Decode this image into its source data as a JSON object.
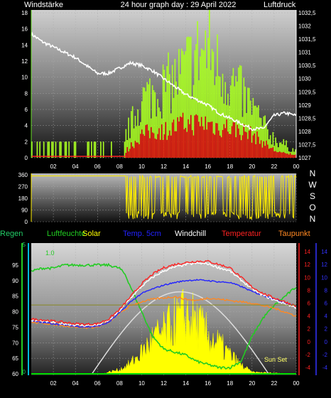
{
  "header": {
    "left_title": "Windstärke",
    "center_title": "24 hour graph day : 29 April 2022",
    "right_title": "Luftdruck"
  },
  "colors": {
    "bg": "#000000",
    "white": "#ffffff",
    "wind_avg": "#66dd22",
    "wind_gust": "#aaff22",
    "wind_dir": "#ffee00",
    "rain": "#00cc00",
    "rain_text": "#22cc66",
    "humidity": "#22cc22",
    "solar": "#ffff00",
    "temp5cm": "#2222ff",
    "windchill": "#ffffff",
    "temperature": "#ff2222",
    "dewpoint": "#ff8822",
    "pressure": "#ffffff",
    "red_axis": "#ff2222",
    "blue_axis": "#3333ff",
    "cyan_axis": "#00bbdd"
  },
  "compass": [
    "N",
    "W",
    "S",
    "O",
    "N"
  ],
  "legend": [
    {
      "key": "rain",
      "label": "Regen"
    },
    {
      "key": "humidity",
      "label": "Luftfeuchte"
    },
    {
      "key": "solar",
      "label": "Solar"
    },
    {
      "key": "temp5cm",
      "label": "Temp. 5cm"
    },
    {
      "key": "windchill",
      "label": "Windchill"
    },
    {
      "key": "temperature",
      "label": "Temperatur"
    },
    {
      "key": "dewpoint",
      "label": "Taupunkt"
    }
  ],
  "annotations": {
    "rain_value": "1.0",
    "sun_set": "Sun Set"
  },
  "chart_data": [
    {
      "type": "line",
      "name": "wind-and-pressure",
      "x_ticks": [
        "02",
        "04",
        "06",
        "08",
        "10",
        "12",
        "14",
        "16",
        "18",
        "20",
        "22",
        "00"
      ],
      "left_axis": {
        "title": "Windstärke",
        "ylim": [
          0,
          18
        ],
        "ticks": [
          "0",
          "2",
          "4",
          "6",
          "8",
          "10",
          "12",
          "14",
          "16",
          "18"
        ]
      },
      "right_axis": {
        "title": "Luftdruck",
        "ylim": [
          1027,
          1032.5
        ],
        "ticks": [
          "1027",
          "1027,5",
          "1028",
          "1028,5",
          "1029",
          "1029,5",
          "1030",
          "1030,5",
          "1031",
          "1031,5",
          "1032",
          "1032,5"
        ]
      },
      "pressure": {
        "x": [
          0,
          1,
          2,
          3,
          4,
          5,
          6,
          7,
          8,
          9,
          10,
          11,
          12,
          13,
          14,
          15,
          16,
          17,
          18,
          19,
          20,
          21,
          22,
          23,
          24
        ],
        "y": [
          1031.7,
          1031.4,
          1031.2,
          1031.0,
          1030.8,
          1030.5,
          1030.2,
          1030.2,
          1030.4,
          1030.6,
          1030.5,
          1030.3,
          1030.0,
          1029.7,
          1029.4,
          1029.2,
          1029.0,
          1028.7,
          1028.5,
          1028.3,
          1028.1,
          1028.1,
          1028.6,
          1028.7,
          1028.6
        ]
      },
      "wind_gust_envelope": {
        "x": [
          0,
          8,
          9,
          10,
          11,
          12,
          13,
          14,
          15,
          16,
          17,
          18,
          19,
          20,
          21,
          22,
          23,
          24
        ],
        "y": [
          2,
          2,
          5,
          9,
          10,
          11,
          12,
          14,
          16,
          17,
          14,
          12,
          10,
          8,
          5,
          3,
          2,
          1
        ]
      },
      "wind_avg_envelope": {
        "x": [
          0,
          8,
          9,
          10,
          11,
          12,
          13,
          14,
          15,
          16,
          17,
          18,
          19,
          20,
          21,
          22,
          23,
          24
        ],
        "y": [
          0,
          0,
          1.5,
          3,
          3.5,
          3.5,
          4,
          4.5,
          4.5,
          4.5,
          4,
          4,
          3.5,
          3,
          2,
          1,
          0.5,
          0.5
        ]
      }
    },
    {
      "type": "line",
      "name": "wind-direction",
      "x_ticks": [
        "02",
        "04",
        "06",
        "08",
        "10",
        "12",
        "14",
        "16",
        "18",
        "20",
        "22",
        "00"
      ],
      "ylim": [
        0,
        360
      ],
      "y_ticks": [
        "0",
        "90",
        "180",
        "270",
        "360"
      ],
      "note": "steady ~350 deg from 00 to 08:30, then oscillating between about 30 and 350 deg"
    },
    {
      "type": "line",
      "name": "climate",
      "x_ticks": [
        "02",
        "04",
        "06",
        "08",
        "10",
        "12",
        "14",
        "16",
        "18",
        "20",
        "22",
        "00"
      ],
      "humidity_axis": {
        "ylim": [
          60,
          95
        ],
        "ticks": [
          "60",
          "65",
          "70",
          "75",
          "80",
          "85",
          "90",
          "95"
        ]
      },
      "rain_axis": {
        "ylim": [
          0,
          5
        ],
        "ticks": [
          "0",
          "5"
        ]
      },
      "temp_axis": {
        "ylim": [
          -5,
          15
        ],
        "ticks": [
          "-4",
          "-2",
          "0",
          "2",
          "4",
          "6",
          "8",
          "10",
          "12",
          "14"
        ]
      },
      "series": [
        {
          "key": "humidity",
          "x": [
            0,
            1,
            2,
            3,
            4,
            5,
            6,
            7,
            8,
            8.5,
            9,
            9.5,
            10,
            11,
            12,
            13,
            14,
            15,
            16,
            17,
            18,
            19,
            20,
            21,
            22,
            23,
            24
          ],
          "y": [
            93,
            94,
            94,
            95,
            95,
            95,
            95,
            95,
            94,
            92,
            88,
            84,
            80,
            72,
            68,
            67,
            66,
            64,
            63,
            62,
            62,
            64,
            72,
            78,
            82,
            85,
            88
          ]
        },
        {
          "key": "temperature",
          "x": [
            0,
            1,
            2,
            3,
            4,
            5,
            6,
            7,
            8,
            9,
            10,
            11,
            12,
            13,
            14,
            15,
            16,
            17,
            18,
            19,
            20,
            21,
            22,
            23,
            24
          ],
          "y": [
            3.5,
            3.4,
            3.2,
            3.0,
            2.8,
            2.7,
            2.8,
            3.5,
            5,
            7,
            9,
            10.5,
            11.5,
            12,
            12.3,
            12.5,
            12.5,
            12,
            11.5,
            10,
            8.5,
            7.5,
            6.8,
            6.2,
            5.5
          ]
        },
        {
          "key": "windchill",
          "x": [
            0,
            1,
            2,
            3,
            4,
            5,
            6,
            7,
            8,
            9,
            10,
            11,
            12,
            13,
            14,
            15,
            16,
            17,
            18,
            19,
            20,
            21,
            22,
            23,
            24
          ],
          "y": [
            3.3,
            3.2,
            3.0,
            2.8,
            2.6,
            2.5,
            2.6,
            3.3,
            4.8,
            6.8,
            8.6,
            10,
            11,
            11.6,
            12,
            12.2,
            12.1,
            11.5,
            11,
            9.6,
            8.2,
            7.2,
            6.5,
            5.9,
            5.3
          ]
        },
        {
          "key": "temp5cm",
          "x": [
            0,
            1,
            2,
            3,
            4,
            5,
            6,
            7,
            8,
            9,
            10,
            11,
            12,
            13,
            14,
            15,
            16,
            17,
            18,
            19,
            20,
            21,
            22,
            23,
            24
          ],
          "y": [
            3.2,
            3.0,
            2.8,
            2.6,
            2.4,
            2.3,
            2.4,
            3.0,
            4.5,
            6.2,
            7.5,
            8.2,
            8.8,
            9.2,
            9.5,
            9.6,
            9.5,
            9.3,
            9.2,
            8.6,
            7.8,
            7.2,
            6.6,
            6.0,
            5.6
          ]
        },
        {
          "key": "dewpoint",
          "x": [
            0,
            1,
            2,
            3,
            4,
            5,
            6,
            7,
            8,
            9,
            10,
            11,
            12,
            13,
            14,
            15,
            16,
            17,
            18,
            19,
            20,
            21,
            22,
            23,
            24
          ],
          "y": [
            3.0,
            2.9,
            2.7,
            2.5,
            2.3,
            2.2,
            2.3,
            3.0,
            4.4,
            5.6,
            6.2,
            6.6,
            6.8,
            7.0,
            6.6,
            6.4,
            6.8,
            6.6,
            6.4,
            6.2,
            6.0,
            5.6,
            5.2,
            4.6,
            4.0
          ]
        },
        {
          "key": "rain",
          "x": [
            0,
            24
          ],
          "y": [
            0.1,
            0.1
          ]
        }
      ],
      "solar": {
        "x": [
          0,
          6.5,
          7,
          8,
          9,
          10,
          11,
          12,
          13,
          14,
          15,
          16,
          17,
          18,
          19,
          20,
          24
        ],
        "y": [
          0,
          0,
          2,
          5,
          12,
          25,
          40,
          48,
          60,
          70,
          60,
          45,
          35,
          22,
          10,
          2,
          0
        ],
        "max_theoretical_peak_hour": 13.5
      }
    }
  ]
}
